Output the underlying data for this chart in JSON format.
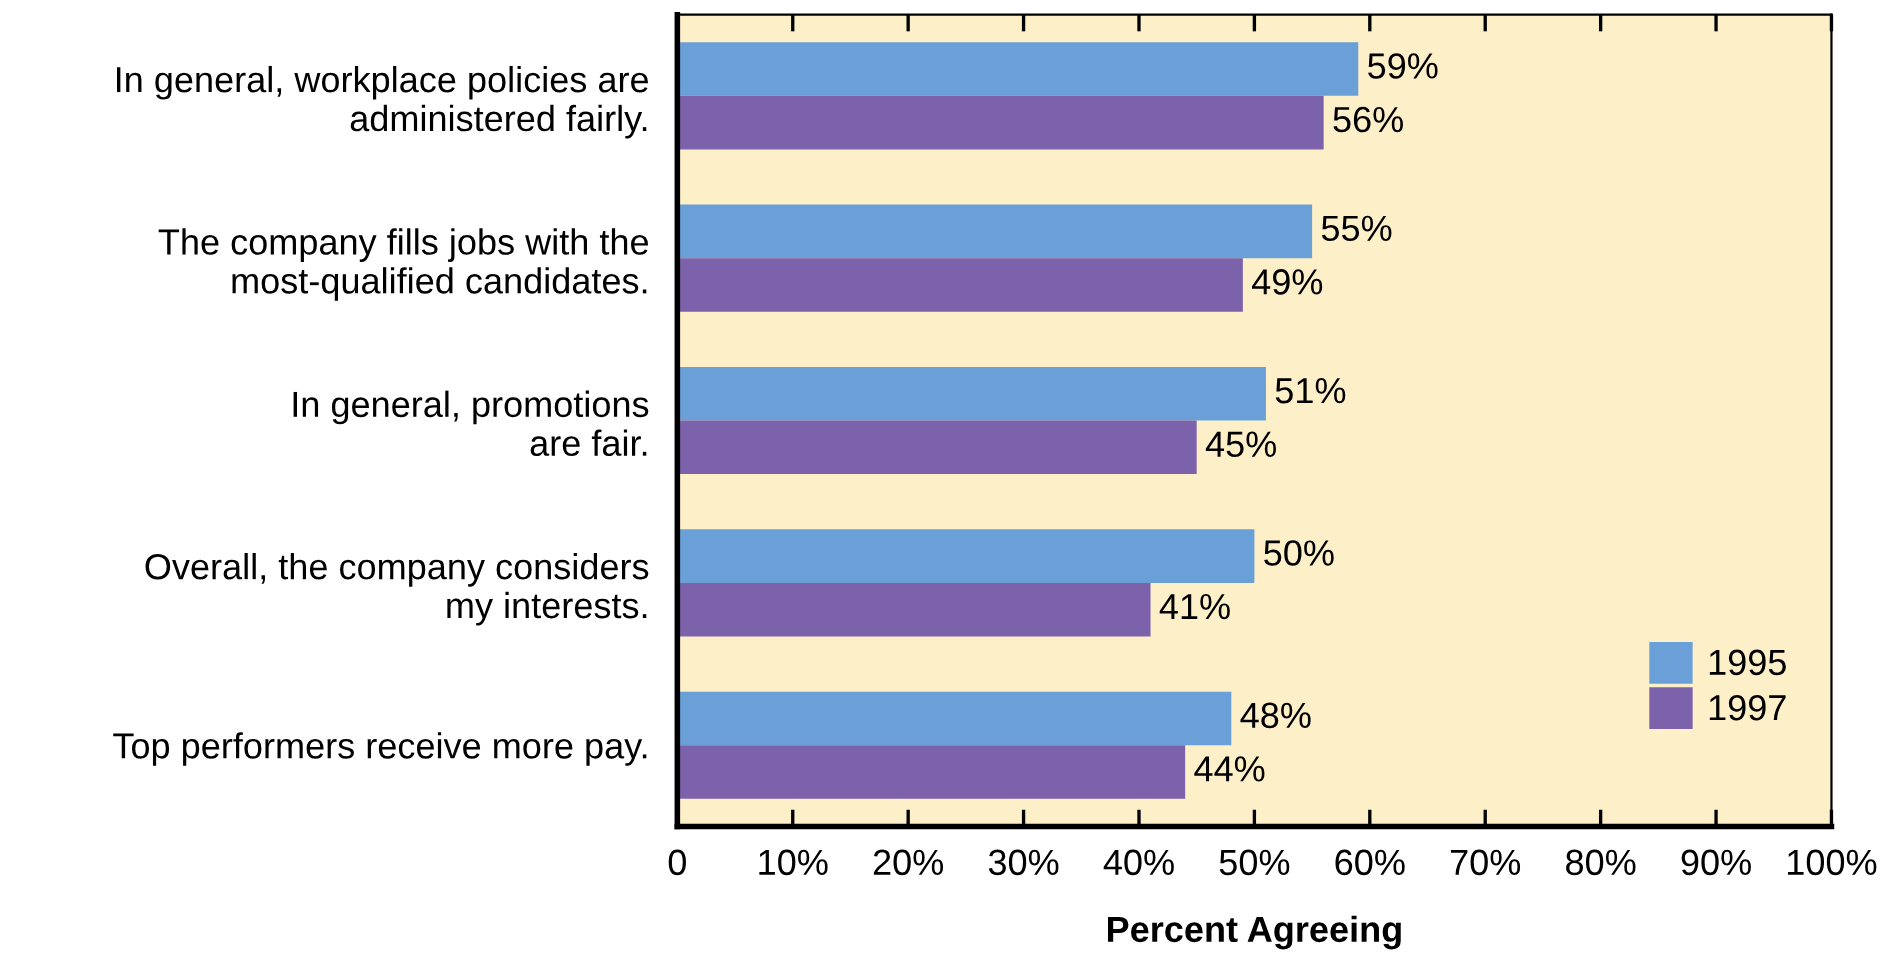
{
  "chart_data": {
    "type": "bar",
    "orientation": "horizontal",
    "xlabel": "Percent Agreeing",
    "categories": [
      "In general, workplace policies are\nadministered fairly.",
      "The company fills jobs with the\nmost-qualified candidates.",
      "In general, promotions\nare fair.",
      "Overall, the company considers\nmy interests.",
      "Top performers receive more pay."
    ],
    "series": [
      {
        "name": "1995",
        "color": "#6a9fd8",
        "values": [
          59,
          55,
          51,
          50,
          48
        ],
        "value_labels": [
          "59%",
          "55%",
          "51%",
          "50%",
          "48%"
        ]
      },
      {
        "name": "1997",
        "color": "#7b62ab",
        "values": [
          56,
          49,
          45,
          41,
          44
        ],
        "value_labels": [
          "56%",
          "49%",
          "45%",
          "41%",
          "44%"
        ]
      }
    ],
    "xlim": [
      0,
      100
    ],
    "xticks": [
      0,
      {
        "value": 10,
        "label": "10%"
      },
      {
        "value": 20,
        "label": "20%"
      },
      {
        "value": 30,
        "label": "30%"
      },
      {
        "value": 40,
        "label": "40%"
      },
      {
        "value": 50,
        "label": "50%"
      },
      {
        "value": 60,
        "label": "60%"
      },
      {
        "value": 70,
        "label": "70%"
      },
      {
        "value": 80,
        "label": "80%"
      },
      {
        "value": 90,
        "label": "90%"
      },
      {
        "value": 100,
        "label": "100%"
      }
    ],
    "grid": false,
    "legend": "bottom right"
  }
}
